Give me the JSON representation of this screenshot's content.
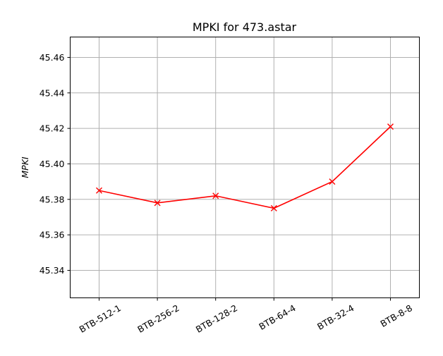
{
  "chart_data": {
    "type": "line",
    "title": "MPKI for 473.astar",
    "xlabel": "",
    "ylabel": "MPKI",
    "categories": [
      "BTB-512-1",
      "BTB-256-2",
      "BTB-128-2",
      "BTB-64-4",
      "BTB-32-4",
      "BTB-8-8"
    ],
    "series": [
      {
        "values": [
          45.385,
          45.378,
          45.382,
          45.375,
          45.39,
          45.421
        ],
        "color": "#ff0000",
        "marker": "x"
      }
    ],
    "ylim": [
      45.3245,
      45.4715
    ],
    "yticks": [
      45.34,
      45.36,
      45.38,
      45.4,
      45.42,
      45.44,
      45.46
    ],
    "ytick_labels": [
      "45.34",
      "45.36",
      "45.38",
      "45.40",
      "45.42",
      "45.44",
      "45.46"
    ],
    "grid": true
  }
}
